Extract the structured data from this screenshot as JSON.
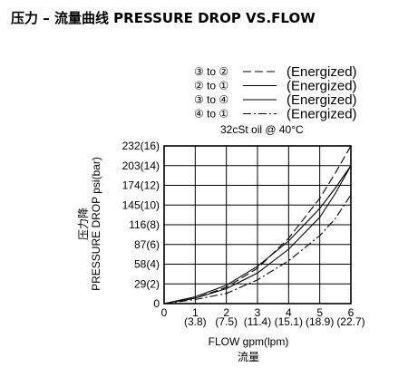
{
  "page": {
    "title": "压力 – 流量曲线 PRESSURE DROP VS.FLOW"
  },
  "legend": {
    "entries": [
      {
        "ports": "③ to ②",
        "style": "dash",
        "note": "(Energized)"
      },
      {
        "ports": "② to ①",
        "style": "solid",
        "note": "(Energized)"
      },
      {
        "ports": "③ to ④",
        "style": "solid",
        "note": "(Energized)"
      },
      {
        "ports": "④ to ①",
        "style": "dashdot",
        "note": "(Energized)"
      }
    ],
    "condition": "32cSt  oil @ 40°C"
  },
  "chart_data": {
    "type": "line",
    "title": "压力 – 流量曲线 PRESSURE DROP VS.FLOW",
    "xlabel": "FLOW gpm(lpm)",
    "xlabel_cn": "流量",
    "ylabel": "PRESSURE DROP psi(bar)",
    "ylabel_cn": "压力降",
    "xlim": [
      0,
      6
    ],
    "ylim": [
      0,
      232
    ],
    "grid": true,
    "legend_position": "top-right",
    "x_ticks": [
      0,
      1,
      2,
      3,
      4,
      5,
      6
    ],
    "x_tick_labels_top": [
      "0",
      "1",
      "2",
      "3",
      "4",
      "5",
      "6"
    ],
    "x_tick_labels_bottom": [
      "",
      "(3.8)",
      "(7.5)",
      "(11.4)",
      "(15.1)",
      "(18.9)",
      "(22.7)"
    ],
    "y_ticks": [
      0,
      29,
      58,
      87,
      116,
      145,
      174,
      203,
      232
    ],
    "y_tick_labels": [
      "0",
      "29(2)",
      "58(4)",
      "87(6)",
      "116(8)",
      "145(10)",
      "174(12)",
      "203(14)",
      "232(16)"
    ],
    "series": [
      {
        "name": "③ to ② (Energized)",
        "style": "dash",
        "x": [
          0,
          1,
          2,
          3,
          4,
          5,
          5.5,
          6
        ],
        "y": [
          0,
          8,
          24,
          52,
          96,
          155,
          192,
          232
        ]
      },
      {
        "name": "② to ① (Energized)",
        "style": "solid",
        "x": [
          0,
          1,
          2,
          3,
          4,
          5,
          5.5,
          6
        ],
        "y": [
          0,
          10,
          27,
          55,
          92,
          140,
          170,
          203
        ]
      },
      {
        "name": "③ to ④ (Energized)",
        "style": "solid",
        "x": [
          0,
          1,
          2,
          3,
          4,
          5,
          5.5,
          6
        ],
        "y": [
          0,
          8,
          22,
          45,
          80,
          127,
          162,
          203
        ]
      },
      {
        "name": "④ to ① (Energized)",
        "style": "dashdot",
        "x": [
          0,
          1,
          2,
          3,
          4,
          5,
          5.5,
          6
        ],
        "y": [
          0,
          6,
          15,
          35,
          63,
          100,
          125,
          160
        ]
      }
    ]
  }
}
